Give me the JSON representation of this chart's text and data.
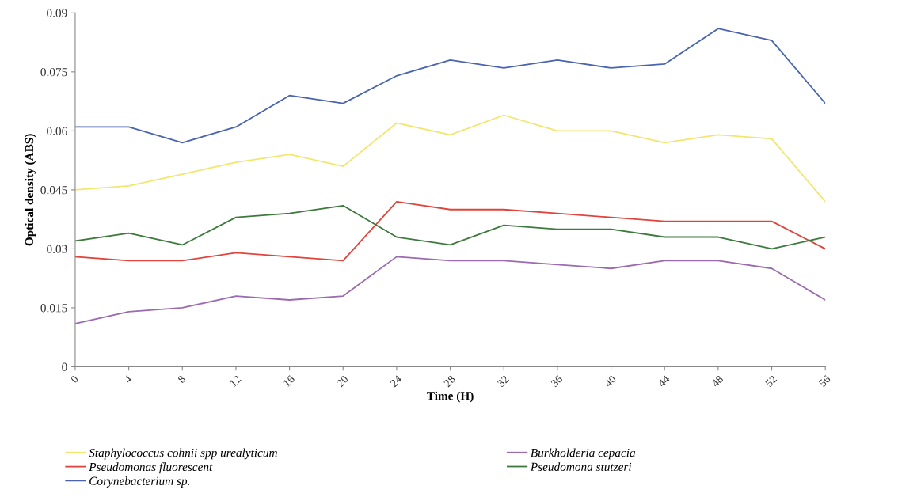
{
  "chart_data": {
    "type": "line",
    "xlabel": "Time (H)",
    "ylabel": "Optical density (ABS)",
    "categories": [
      "0",
      "4",
      "8",
      "12",
      "16",
      "20",
      "24",
      "28",
      "32",
      "36",
      "40",
      "44",
      "48",
      "52",
      "56"
    ],
    "series": [
      {
        "name": "Staphylococcus cohnii spp urealyticum",
        "color": "#f2e66e",
        "values": [
          0.045,
          0.046,
          0.049,
          0.052,
          0.054,
          0.051,
          0.062,
          0.059,
          0.064,
          0.06,
          0.06,
          0.057,
          0.059,
          0.058,
          0.042
        ]
      },
      {
        "name": "Burkholderia cepacia",
        "color": "#9b6bb0",
        "values": [
          0.011,
          0.014,
          0.015,
          0.018,
          0.017,
          0.018,
          0.028,
          0.027,
          0.027,
          0.026,
          0.025,
          0.027,
          0.027,
          0.025,
          0.017
        ]
      },
      {
        "name": "Pseudomonas fluorescent",
        "color": "#e0443c",
        "values": [
          0.028,
          0.027,
          0.027,
          0.029,
          0.028,
          0.027,
          0.042,
          0.04,
          0.04,
          0.039,
          0.038,
          0.037,
          0.037,
          0.037,
          0.03
        ]
      },
      {
        "name": "Pseudomona stutzeri",
        "color": "#3d7a3d",
        "values": [
          0.032,
          0.034,
          0.031,
          0.038,
          0.039,
          0.041,
          0.033,
          0.031,
          0.036,
          0.035,
          0.035,
          0.033,
          0.033,
          0.03,
          0.033
        ]
      },
      {
        "name": "Corynebacterium sp.",
        "color": "#4a64b0",
        "values": [
          0.061,
          0.061,
          0.057,
          0.061,
          0.069,
          0.067,
          0.074,
          0.078,
          0.076,
          0.078,
          0.076,
          0.077,
          0.086,
          0.083,
          0.067
        ]
      }
    ],
    "ylim": [
      0,
      0.09
    ],
    "yticks": [
      0,
      0.015,
      0.03,
      0.045,
      0.06,
      0.075,
      0.09
    ],
    "grid": false,
    "legend": "bottom",
    "marker": "none",
    "line_style": "solid"
  }
}
